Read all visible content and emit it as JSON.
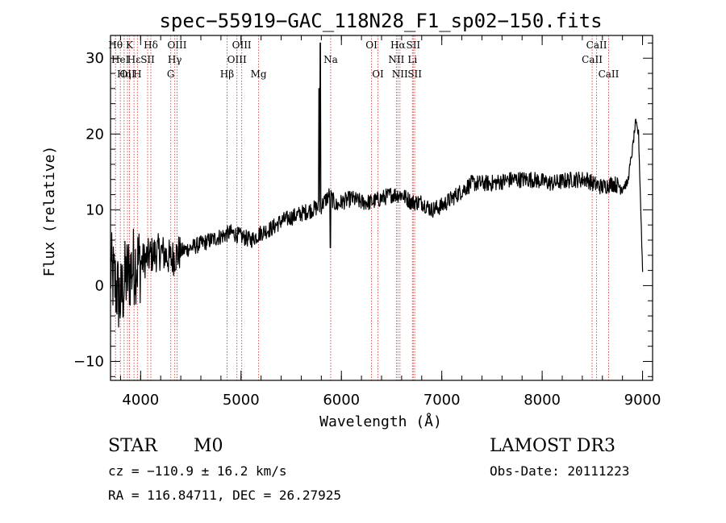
{
  "chart_data": {
    "type": "line",
    "title": "spec−55919−GAC_118N28_F1_sp02−150.fits",
    "xlabel": "Wavelength (Å)",
    "ylabel": "Flux (relative)",
    "xlim": [
      3700,
      9100
    ],
    "ylim": [
      -12.5,
      33
    ],
    "xticks": [
      4000,
      5000,
      6000,
      7000,
      8000,
      9000
    ],
    "yticks": [
      -10,
      0,
      10,
      20,
      30
    ],
    "xtick_labels": [
      "4000",
      "5000",
      "6000",
      "7000",
      "8000",
      "9000"
    ],
    "ytick_labels": [
      "−10",
      "0",
      "10",
      "20",
      "30"
    ],
    "spectrum_anchors": {
      "x": [
        3700,
        3750,
        3800,
        3850,
        3900,
        3950,
        4000,
        4100,
        4200,
        4300,
        4400,
        4500,
        4700,
        4900,
        5000,
        5100,
        5200,
        5300,
        5400,
        5500,
        5600,
        5700,
        5800,
        5880,
        5950,
        6000,
        6100,
        6200,
        6300,
        6400,
        6500,
        6600,
        6700,
        6800,
        6900,
        7000,
        7100,
        7200,
        7300,
        7500,
        7700,
        7900,
        8100,
        8300,
        8450,
        8500,
        8600,
        8700,
        8800,
        8850,
        8900,
        8930,
        8960,
        9000
      ],
      "y": [
        2,
        0,
        -2,
        1,
        2,
        3,
        3,
        4,
        4.5,
        3.5,
        4.5,
        5,
        6,
        7,
        6.5,
        6,
        7,
        7.5,
        8.5,
        9,
        9.5,
        10,
        10.5,
        12,
        10.5,
        11,
        11.5,
        11,
        11,
        11.5,
        12,
        12,
        11,
        11,
        10,
        10.5,
        11.5,
        12.5,
        13.5,
        13.5,
        14,
        14,
        13.5,
        14,
        14,
        13.5,
        13,
        13.5,
        13,
        13.5,
        18,
        21.5,
        20,
        2
      ],
      "noise_amplitude": 1.1
    },
    "spikes": [
      {
        "x": 5778,
        "y": 26
      },
      {
        "x": 5790,
        "y": 32
      },
      {
        "x": 5890,
        "y": 5
      }
    ],
    "line_markers": [
      {
        "x": 3750,
        "label": "Hθ",
        "row": 0
      },
      {
        "x": 3798,
        "label": "HeI",
        "row": 1
      },
      {
        "x": 3835,
        "label": "Hη",
        "row": 2
      },
      {
        "x": 3869,
        "label": "OII",
        "row": 2
      },
      {
        "x": 3889,
        "label": "K",
        "row": 0
      },
      {
        "x": 3934,
        "label": "Hε",
        "row": 1
      },
      {
        "x": 3968,
        "label": "H",
        "row": 2
      },
      {
        "x": 4070,
        "label": "SII",
        "row": 1
      },
      {
        "x": 4102,
        "label": "Hδ",
        "row": 0
      },
      {
        "x": 4300,
        "label": "G",
        "row": 2
      },
      {
        "x": 4340,
        "label": "Hγ",
        "row": 1
      },
      {
        "x": 4363,
        "label": "OIII",
        "row": 0
      },
      {
        "x": 4861,
        "label": "Hβ",
        "row": 2
      },
      {
        "x": 4959,
        "label": "OIII",
        "row": 1
      },
      {
        "x": 5007,
        "label": "OIII",
        "row": 0
      },
      {
        "x": 5175,
        "label": "Mg",
        "row": 2
      },
      {
        "x": 5893,
        "label": "Na",
        "row": 1
      },
      {
        "x": 6300,
        "label": "OI",
        "row": 0
      },
      {
        "x": 6364,
        "label": "OI",
        "row": 2
      },
      {
        "x": 6548,
        "label": "NII",
        "row": 1
      },
      {
        "x": 6563,
        "label": "Hα",
        "row": 0
      },
      {
        "x": 6583,
        "label": "NII",
        "row": 2
      },
      {
        "x": 6708,
        "label": "Li",
        "row": 1
      },
      {
        "x": 6716,
        "label": "SII",
        "row": 0
      },
      {
        "x": 6731,
        "label": "SII",
        "row": 2
      },
      {
        "x": 8498,
        "label": "CaII",
        "row": 1
      },
      {
        "x": 8542,
        "label": "CaII",
        "row": 0
      },
      {
        "x": 8662,
        "label": "CaII",
        "row": 2
      }
    ]
  },
  "info": {
    "class_label": "STAR",
    "subclass": "M0",
    "survey": "LAMOST DR3",
    "cz": "cz = −110.9 ± 16.2 km/s",
    "obs_date": "Obs-Date: 20111223",
    "coords": "RA = 116.84711, DEC =  26.27925"
  },
  "colors": {
    "marker_line": "#d9534f",
    "spectrum": "#000000"
  }
}
